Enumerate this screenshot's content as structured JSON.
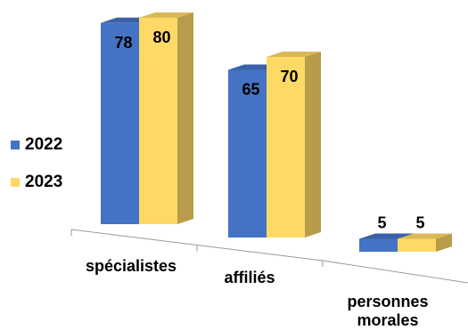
{
  "chart_data": {
    "type": "bar",
    "categories": [
      "spécialistes",
      "affiliés",
      "personnes morales"
    ],
    "series": [
      {
        "name": "2022",
        "values": [
          78,
          65,
          5
        ],
        "color": "#4472C4"
      },
      {
        "name": "2023",
        "values": [
          80,
          70,
          5
        ],
        "color": "#FFD966"
      }
    ],
    "ylim": [
      0,
      80
    ],
    "grid": false,
    "legend": "left",
    "style": "3d"
  },
  "legend": {
    "items": [
      "2022",
      "2023"
    ]
  },
  "labels": {
    "cat0": "spécialistes",
    "cat1": "affiliés",
    "cat2a": "personnes",
    "cat2b": "morales"
  }
}
